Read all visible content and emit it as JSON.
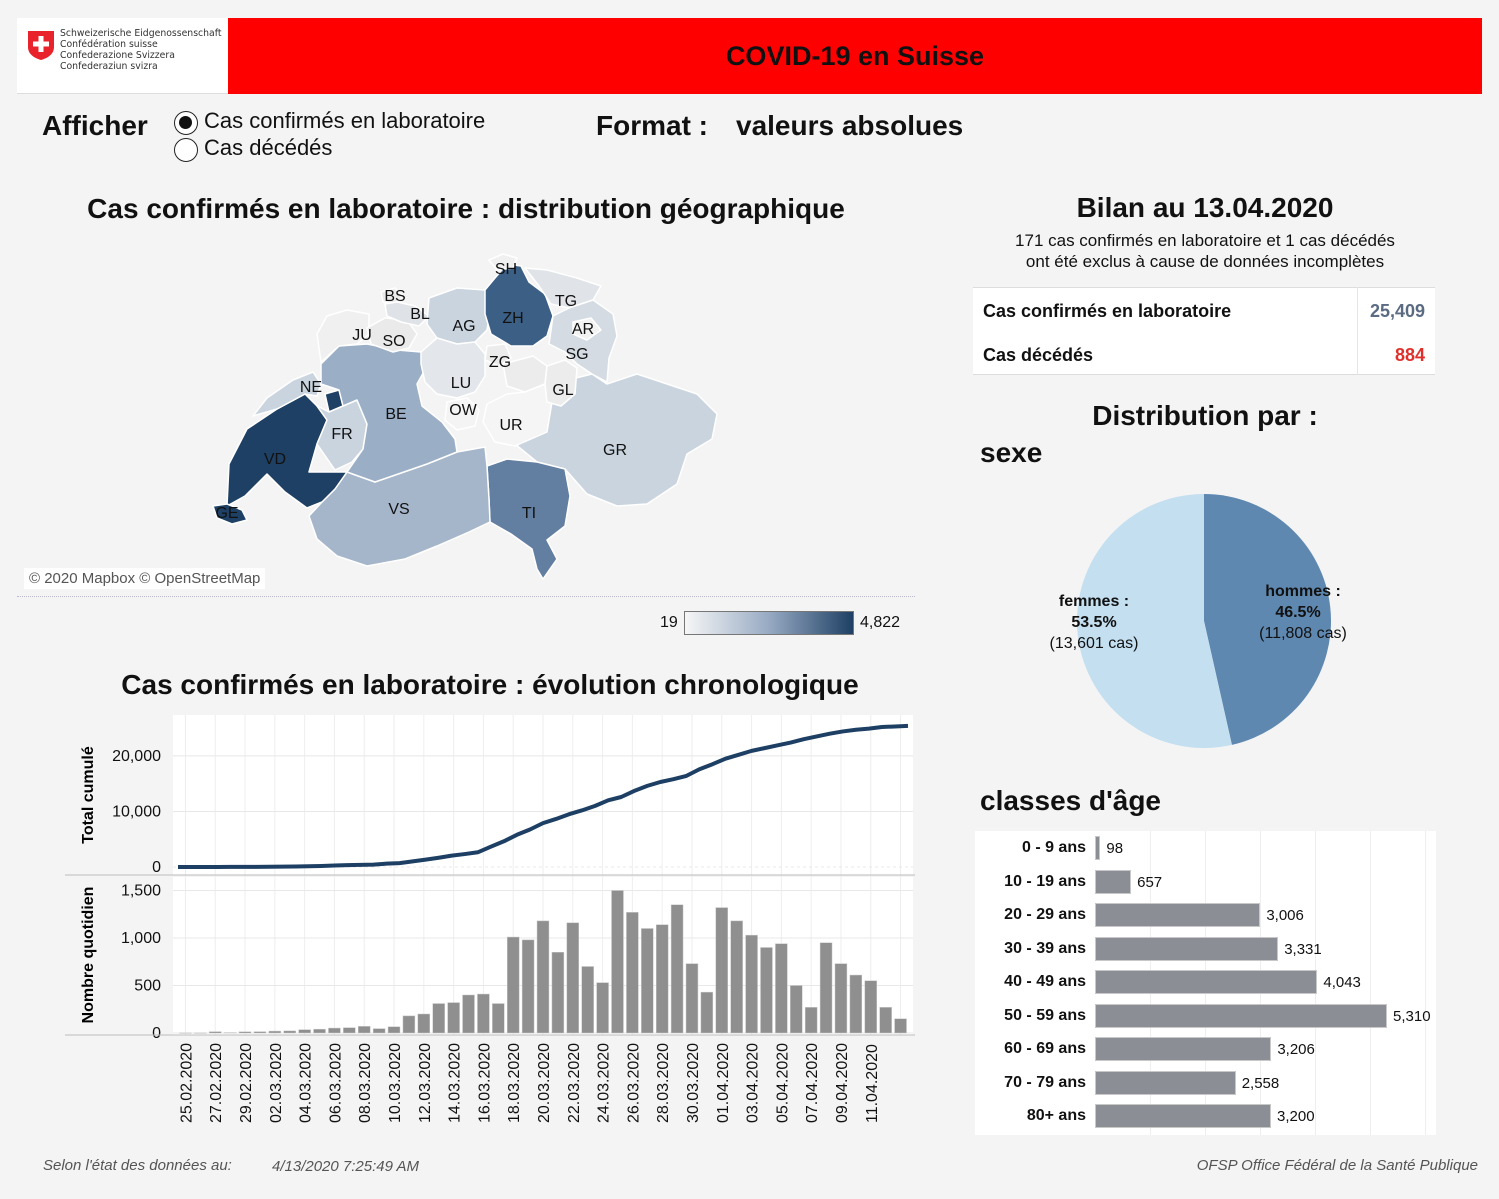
{
  "header": {
    "title": "COVID-19 en Suisse",
    "logo_lines": [
      "Schweizerische Eidgenossenschaft",
      "Confédération suisse",
      "Confederazione Svizzera",
      "Confederaziun svizra"
    ]
  },
  "controls": {
    "afficher_label": "Afficher",
    "options": [
      {
        "label": "Cas confirmés en laboratoire",
        "selected": true
      },
      {
        "label": "Cas décédés",
        "selected": false
      }
    ],
    "format_label": "Format :",
    "format_value": "valeurs absolues"
  },
  "map": {
    "title": "Cas confirmés en laboratoire : distribution géographique",
    "credit": "© 2020 Mapbox © OpenStreetMap",
    "legend_min": "19",
    "legend_max": "4,822",
    "cantons": [
      "SH",
      "BS",
      "TG",
      "BL",
      "AG",
      "ZH",
      "AR",
      "JU",
      "SO",
      "SG",
      "ZG",
      "LU",
      "NE",
      "GL",
      "OW",
      "BE",
      "FR",
      "UR",
      "GR",
      "VD",
      "GE",
      "VS",
      "TI"
    ]
  },
  "bilan": {
    "title": "Bilan au 13.04.2020",
    "note_line1": "171 cas confirmés en laboratoire et 1 cas décédés",
    "note_line2": "ont été exclus à cause de données incomplètes",
    "confirmed_label": "Cas confirmés en laboratoire",
    "confirmed_value": "25,409",
    "deaths_label": "Cas décédés",
    "deaths_value": "884",
    "confirmed_color": "#5a6b82",
    "deaths_color": "#e0302c"
  },
  "distribution": {
    "title": "Distribution par :",
    "sexe_title": "sexe",
    "age_title": "classes d'âge"
  },
  "chart_data": [
    {
      "type": "pie",
      "slices": [
        {
          "name": "hommes :",
          "percent": "46.5%",
          "cases": "(11,808 cas)",
          "value": 11808,
          "color": "#5f88b0"
        },
        {
          "name": "femmes :",
          "percent": "53.5%",
          "cases": "(13,601 cas)",
          "value": 13601,
          "color": "#c3dff0"
        }
      ]
    },
    {
      "type": "bar",
      "orientation": "horizontal",
      "categories": [
        "0 - 9 ans",
        "10 - 19 ans",
        "20 - 29 ans",
        "30 - 39 ans",
        "40 - 49 ans",
        "50 - 59 ans",
        "60 - 69 ans",
        "70 - 79 ans",
        "80+ ans"
      ],
      "values": [
        98,
        657,
        3006,
        3331,
        4043,
        5310,
        3206,
        2558,
        3200
      ],
      "labels": [
        "98",
        "657",
        "3,006",
        "3,331",
        "4,043",
        "5,310",
        "3,206",
        "2,558",
        "3,200"
      ],
      "xlim": [
        0,
        6000
      ]
    },
    {
      "type": "line",
      "title": "Cas confirmés en laboratoire : évolution chronologique",
      "ylabel": "Total cumulé",
      "yticks": [
        "0",
        "10,000",
        "20,000"
      ],
      "ylim": [
        0,
        27000
      ],
      "x_start": "25.02.2020",
      "values": [
        1,
        2,
        10,
        10,
        15,
        20,
        30,
        40,
        60,
        90,
        135,
        185,
        260,
        330,
        375,
        420,
        600,
        700,
        1020,
        1320,
        1660,
        2050,
        2330,
        2650,
        3650,
        4630,
        5800,
        6750,
        7900,
        8650,
        9500,
        10200,
        11000,
        12000,
        12600,
        13700,
        14600,
        15300,
        15800,
        16400,
        17600,
        18500,
        19500,
        20200,
        20900,
        21400,
        21900,
        22400,
        23000,
        23500,
        24000,
        24400,
        24700,
        24900,
        25200,
        25300,
        25409
      ]
    },
    {
      "type": "bar",
      "ylabel": "Nombre quotidien",
      "yticks": [
        "0",
        "500",
        "1,000",
        "1,500"
      ],
      "ylim": [
        0,
        1600
      ],
      "x_labels": [
        "25.02.2020",
        "27.02.2020",
        "29.02.2020",
        "02.03.2020",
        "04.03.2020",
        "06.03.2020",
        "08.03.2020",
        "10.03.2020",
        "12.03.2020",
        "14.03.2020",
        "16.03.2020",
        "18.03.2020",
        "20.03.2020",
        "22.03.2020",
        "24.03.2020",
        "26.03.2020",
        "28.03.2020",
        "30.03.2020",
        "01.04.2020",
        "03.04.2020",
        "05.04.2020",
        "07.04.2020",
        "09.04.2020",
        "11.04.2020"
      ],
      "values": [
        1,
        1,
        14,
        5,
        13,
        14,
        20,
        22,
        35,
        40,
        52,
        56,
        70,
        46,
        66,
        180,
        200,
        310,
        320,
        400,
        410,
        310,
        1010,
        980,
        1180,
        850,
        1160,
        700,
        530,
        1500,
        1270,
        1100,
        1140,
        1350,
        730,
        430,
        1320,
        1180,
        1030,
        900,
        940,
        500,
        270,
        950,
        730,
        610,
        550,
        270,
        150
      ]
    }
  ],
  "footer": {
    "state_label": "Selon l'état des données au:",
    "state_date": "4/13/2020 7:25:49 AM",
    "source": "OFSP Office Fédéral de la Santé Publique"
  }
}
